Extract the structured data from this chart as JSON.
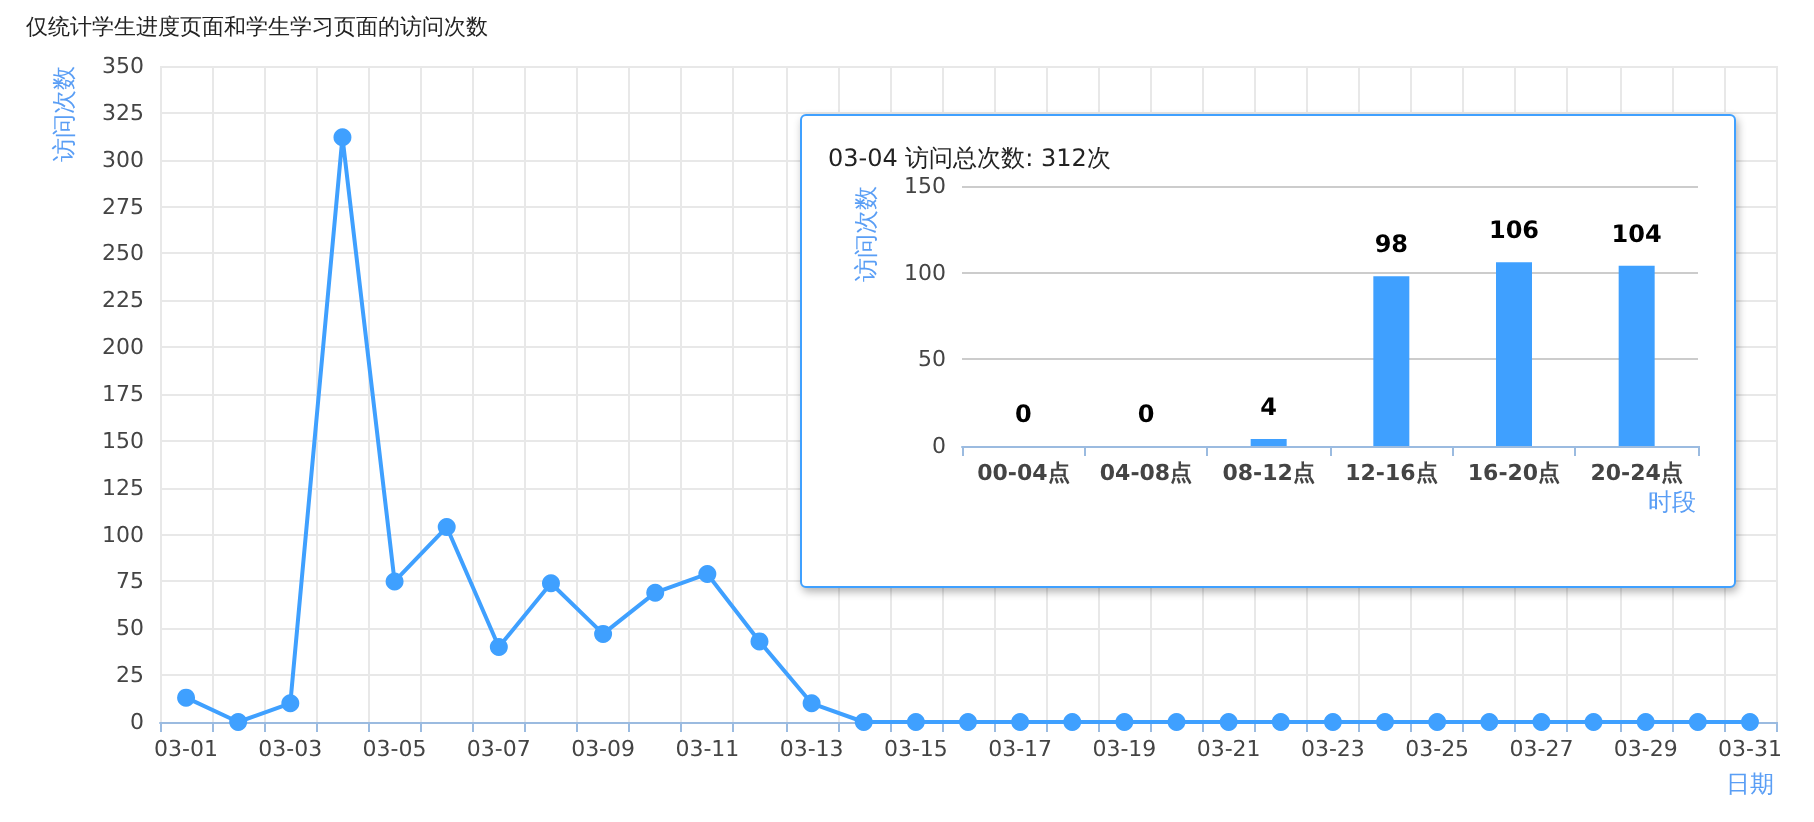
{
  "chart_data": [
    {
      "type": "line",
      "title": "仅统计学生进度页面和学生学习页面的访问次数",
      "xlabel": "日期",
      "ylabel": "访问次数",
      "categories": [
        "03-01",
        null,
        "03-03",
        null,
        "03-05",
        null,
        "03-07",
        null,
        "03-09",
        null,
        "03-11",
        null,
        "03-13",
        null,
        "03-15",
        null,
        "03-17",
        null,
        "03-19",
        null,
        "03-21",
        null,
        "03-23",
        null,
        "03-25",
        null,
        "03-27",
        null,
        "03-29",
        null,
        "03-31"
      ],
      "series": [
        {
          "color": "#3fa0ff",
          "values": [
            13,
            0,
            10,
            312,
            75,
            104,
            40,
            74,
            47,
            69,
            79,
            43,
            10,
            0,
            0,
            0,
            0,
            0,
            0,
            0,
            0,
            0,
            0,
            0,
            0,
            0,
            0,
            0,
            0,
            0,
            0
          ]
        }
      ],
      "ylim": [
        0,
        350
      ],
      "yticks": [
        0,
        25,
        50,
        75,
        100,
        125,
        150,
        175,
        200,
        225,
        250,
        275,
        300,
        325,
        350
      ],
      "grid": true,
      "marker": "circle",
      "line_style": "solid"
    },
    {
      "type": "bar",
      "title": "03-04 访问总次数: 312次",
      "xlabel": "时段",
      "ylabel": "访问次数",
      "categories": [
        "00-04点",
        "04-08点",
        "08-12点",
        "12-16点",
        "16-20点",
        "20-24点"
      ],
      "series": [
        {
          "color": "#3fa0ff",
          "values": [
            0,
            0,
            4,
            98,
            106,
            104
          ]
        }
      ],
      "ylim": [
        0,
        150
      ],
      "yticks": [
        0,
        50,
        100,
        150
      ],
      "grid": "y",
      "data_labels": true
    }
  ]
}
